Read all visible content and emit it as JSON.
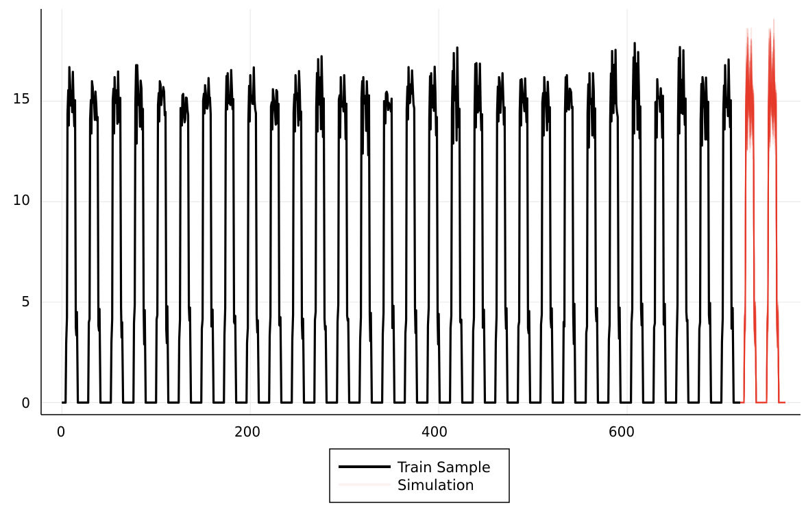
{
  "chart_data": {
    "type": "line",
    "title": "",
    "xlabel": "",
    "ylabel": "",
    "xlim": [
      -22,
      784
    ],
    "ylim": [
      -0.6,
      19.6
    ],
    "x_ticks": [
      0,
      200,
      400,
      600
    ],
    "x_tick_labels": [
      "0",
      "200",
      "400",
      "600"
    ],
    "y_ticks": [
      0,
      5,
      10,
      15
    ],
    "y_tick_labels": [
      "0",
      "5",
      "10",
      "15"
    ],
    "grid": true,
    "legend_position": "bottom-center, outside plot",
    "colors": {
      "train": "#000000",
      "simulation": "#e8392b",
      "grid": "#e6e6e6"
    },
    "series": [
      {
        "name": "Train Sample",
        "x_start": 0,
        "x_end": 720,
        "period": 24,
        "cycles": 30,
        "zero_level": 0,
        "shoulder_level": 4.0,
        "cycle_peaks": [
          16.7,
          16.0,
          16.2,
          16.8,
          16.0,
          15.3,
          15.8,
          16.4,
          16.3,
          15.6,
          16.3,
          17.1,
          16.2,
          16.2,
          15.4,
          16.7,
          16.4,
          17.4,
          16.9,
          16.2,
          16.1,
          16.2,
          16.3,
          16.4,
          17.5,
          17.9,
          16.1,
          17.7,
          16.2,
          16.8
        ],
        "cycle_troughs": [
          13.8,
          13.4,
          13.4,
          12.9,
          14.0,
          13.8,
          14.4,
          14.6,
          14.0,
          13.6,
          13.5,
          13.5,
          13.2,
          12.4,
          13.9,
          14.1,
          13.6,
          12.9,
          13.7,
          14.0,
          13.8,
          13.3,
          14.5,
          12.7,
          14.0,
          13.4,
          13.2,
          13.4,
          12.8,
          13.6
        ]
      },
      {
        "name": "Simulation",
        "x_start": 720,
        "x_end": 768,
        "period": 24,
        "cycles": 2,
        "ensemble_peak_range": [
          14.0,
          18.8
        ],
        "ensemble_trough_range": [
          12.5,
          15.5
        ]
      }
    ]
  },
  "legend": {
    "items": [
      {
        "label": "Train Sample",
        "color": "#000000"
      },
      {
        "label": "Simulation",
        "color": "#e8392b"
      }
    ]
  }
}
